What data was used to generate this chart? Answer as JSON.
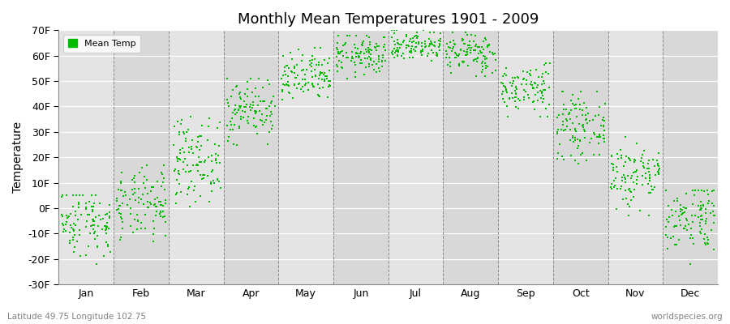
{
  "title": "Monthly Mean Temperatures 1901 - 2009",
  "ylabel": "Temperature",
  "subtitle_left": "Latitude 49.75 Longitude 102.75",
  "subtitle_right": "worldspecies.org",
  "legend_label": "Mean Temp",
  "dot_color": "#00bb00",
  "plot_bg_color": "#ebebeb",
  "band_color_even": "#e4e4e4",
  "band_color_odd": "#d8d8d8",
  "ylim": [
    -30,
    70
  ],
  "yticks": [
    -30,
    -20,
    -10,
    0,
    10,
    20,
    30,
    40,
    50,
    60,
    70
  ],
  "ytick_labels": [
    "-30F",
    "-20F",
    "-10F",
    "0F",
    "10F",
    "20F",
    "30F",
    "40F",
    "50F",
    "60F",
    "70F"
  ],
  "months": [
    "Jan",
    "Feb",
    "Mar",
    "Apr",
    "May",
    "Jun",
    "Jul",
    "Aug",
    "Sep",
    "Oct",
    "Nov",
    "Dec"
  ],
  "monthly_means_F": [
    -5,
    1,
    19,
    39,
    51,
    60,
    64,
    61,
    47,
    32,
    13,
    -3
  ],
  "monthly_stds_F": [
    7,
    7,
    8,
    6,
    5,
    4,
    3,
    4,
    5,
    6,
    7,
    7
  ],
  "monthly_mins_F": [
    -22,
    -21,
    -4,
    25,
    38,
    50,
    55,
    50,
    36,
    14,
    -3,
    -22
  ],
  "monthly_maxs_F": [
    5,
    17,
    36,
    51,
    63,
    68,
    70,
    69,
    57,
    46,
    28,
    7
  ],
  "n_years": 109,
  "marker_size": 3,
  "dpi": 100,
  "figwidth": 9.0,
  "figheight": 4.0
}
